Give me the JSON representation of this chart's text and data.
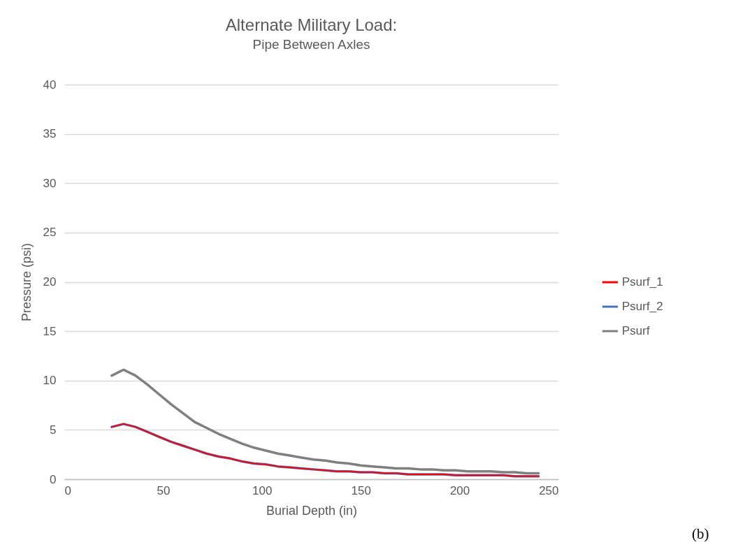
{
  "chart_data": {
    "type": "line",
    "title": "Alternate Military Load:",
    "subtitle": "Pipe Between Axles",
    "xlabel": "Burial Depth (in)",
    "ylabel": "Pressure (psi)",
    "x": [
      24,
      30,
      36,
      42,
      48,
      54,
      60,
      66,
      72,
      78,
      84,
      90,
      96,
      102,
      108,
      114,
      120,
      126,
      132,
      138,
      144,
      150,
      156,
      162,
      168,
      174,
      180,
      186,
      192,
      198,
      204,
      210,
      216,
      222,
      228,
      234,
      240
    ],
    "series": [
      {
        "name": "Psurf_1",
        "color": "#ff0000",
        "values": [
          5.3,
          5.6,
          5.3,
          4.8,
          4.3,
          3.8,
          3.4,
          3.0,
          2.6,
          2.3,
          2.1,
          1.8,
          1.6,
          1.5,
          1.3,
          1.2,
          1.1,
          1.0,
          0.9,
          0.8,
          0.8,
          0.7,
          0.7,
          0.6,
          0.6,
          0.5,
          0.5,
          0.5,
          0.5,
          0.4,
          0.4,
          0.4,
          0.4,
          0.4,
          0.3,
          0.3,
          0.3
        ]
      },
      {
        "name": "Psurf_2",
        "color": "#4472c4",
        "values": [
          5.3,
          5.6,
          5.3,
          4.8,
          4.3,
          3.8,
          3.4,
          3.0,
          2.6,
          2.3,
          2.1,
          1.8,
          1.6,
          1.5,
          1.3,
          1.2,
          1.1,
          1.0,
          0.9,
          0.8,
          0.8,
          0.7,
          0.7,
          0.6,
          0.6,
          0.5,
          0.5,
          0.5,
          0.5,
          0.4,
          0.4,
          0.4,
          0.4,
          0.4,
          0.3,
          0.3,
          0.3
        ]
      },
      {
        "name": "Psurf",
        "color": "#7f7f7f",
        "values": [
          10.5,
          11.1,
          10.5,
          9.6,
          8.6,
          7.6,
          6.7,
          5.8,
          5.2,
          4.6,
          4.1,
          3.6,
          3.2,
          2.9,
          2.6,
          2.4,
          2.2,
          2.0,
          1.9,
          1.7,
          1.6,
          1.4,
          1.3,
          1.2,
          1.1,
          1.1,
          1.0,
          1.0,
          0.9,
          0.9,
          0.8,
          0.8,
          0.8,
          0.7,
          0.7,
          0.6,
          0.6
        ]
      }
    ],
    "xlim": [
      0,
      250
    ],
    "xticks": [
      0,
      50,
      100,
      150,
      200,
      250
    ],
    "ylim": [
      0,
      40
    ],
    "yticks": [
      0,
      5,
      10,
      15,
      20,
      25,
      30,
      35,
      40
    ],
    "grid": "y",
    "legend": "right",
    "marker": "none",
    "line_style": "solid",
    "annotations": [
      "(b)"
    ]
  }
}
